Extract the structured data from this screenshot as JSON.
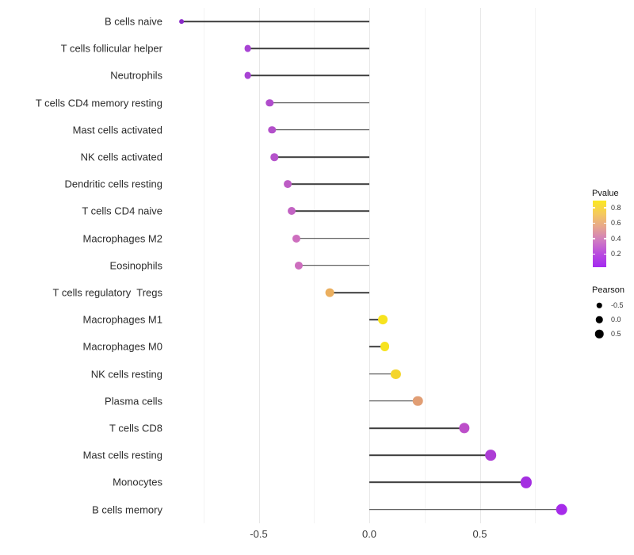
{
  "chart_data": {
    "type": "lollipop",
    "title": "",
    "xlabel": "",
    "ylabel": "",
    "x_tick_labels": [
      "-0.5",
      "0.0",
      "0.5"
    ],
    "x_tick_values": [
      -0.5,
      0.0,
      0.5
    ],
    "x_minor_tick_values": [
      -0.75,
      -0.25,
      0.25,
      0.75
    ],
    "xlim": [
      -0.93,
      0.95
    ],
    "grid": "vertical-only",
    "points": [
      {
        "label": "B cells naive",
        "pearson": -0.85,
        "pvalue_approx": 0.03,
        "color": "#8B2BC9"
      },
      {
        "label": "T cells follicular helper",
        "pearson": -0.55,
        "pvalue_approx": 0.15,
        "color": "#A843D4"
      },
      {
        "label": "Neutrophils",
        "pearson": -0.55,
        "pvalue_approx": 0.15,
        "color": "#A843D4"
      },
      {
        "label": "T cells CD4 memory resting",
        "pearson": -0.45,
        "pvalue_approx": 0.2,
        "color": "#B04CCC"
      },
      {
        "label": "Mast cells activated",
        "pearson": -0.44,
        "pvalue_approx": 0.2,
        "color": "#B350CA"
      },
      {
        "label": "NK cells activated",
        "pearson": -0.43,
        "pvalue_approx": 0.22,
        "color": "#B553CB"
      },
      {
        "label": "Dendritic cells resting",
        "pearson": -0.37,
        "pvalue_approx": 0.25,
        "color": "#BD5CC5"
      },
      {
        "label": "T cells CD4 naive",
        "pearson": -0.35,
        "pvalue_approx": 0.3,
        "color": "#C263C3"
      },
      {
        "label": "Macrophages M2",
        "pearson": -0.33,
        "pvalue_approx": 0.35,
        "color": "#CD6EBE"
      },
      {
        "label": "Eosinophils",
        "pearson": -0.32,
        "pvalue_approx": 0.35,
        "color": "#CD6EBE"
      },
      {
        "label": "T cells regulatory  Tregs",
        "pearson": -0.18,
        "pvalue_approx": 0.65,
        "color": "#EBAF5F"
      },
      {
        "label": "Macrophages M1",
        "pearson": 0.06,
        "pvalue_approx": 0.85,
        "color": "#F7E31F"
      },
      {
        "label": "Macrophages M0",
        "pearson": 0.07,
        "pvalue_approx": 0.85,
        "color": "#F7E31F"
      },
      {
        "label": "NK cells resting",
        "pearson": 0.12,
        "pvalue_approx": 0.8,
        "color": "#F4D52C"
      },
      {
        "label": "Plasma cells",
        "pearson": 0.22,
        "pvalue_approx": 0.55,
        "color": "#E19E74"
      },
      {
        "label": "T cells CD8",
        "pearson": 0.43,
        "pvalue_approx": 0.25,
        "color": "#BC4EC9"
      },
      {
        "label": "Mast cells resting",
        "pearson": 0.55,
        "pvalue_approx": 0.12,
        "color": "#AD3DD5"
      },
      {
        "label": "Monocytes",
        "pearson": 0.71,
        "pvalue_approx": 0.05,
        "color": "#A42FE1"
      },
      {
        "label": "B cells memory",
        "pearson": 0.87,
        "pvalue_approx": 0.04,
        "color": "#A62BEA"
      }
    ]
  },
  "legend_pvalue": {
    "title": "Pvalue",
    "range": [
      0.03,
      0.89
    ],
    "ticks": [
      {
        "label": "0.8",
        "value": 0.8
      },
      {
        "label": "0.6",
        "value": 0.6
      },
      {
        "label": "0.4",
        "value": 0.4
      },
      {
        "label": "0.2",
        "value": 0.2
      }
    ],
    "gradient_top_to_bottom": [
      "#FBE821",
      "#F5C95E",
      "#E6A58F",
      "#D07CC2",
      "#B94BDF",
      "#A32AEF"
    ]
  },
  "legend_pearson": {
    "title": "Pearson",
    "items": [
      {
        "label": "-0.5",
        "value": -0.5,
        "diameter": 6.5
      },
      {
        "label": "0.0",
        "value": 0.0,
        "diameter": 8.5
      },
      {
        "label": "0.5",
        "value": 0.5,
        "diameter": 10.5
      }
    ],
    "dot_color": "#000000"
  },
  "colors": {
    "background": "#ffffff",
    "stem": "#3d3d3d",
    "grid_major": "#e7e7e7",
    "grid_minor": "#f4f4f4",
    "axis_text": "#3c3c3c"
  }
}
